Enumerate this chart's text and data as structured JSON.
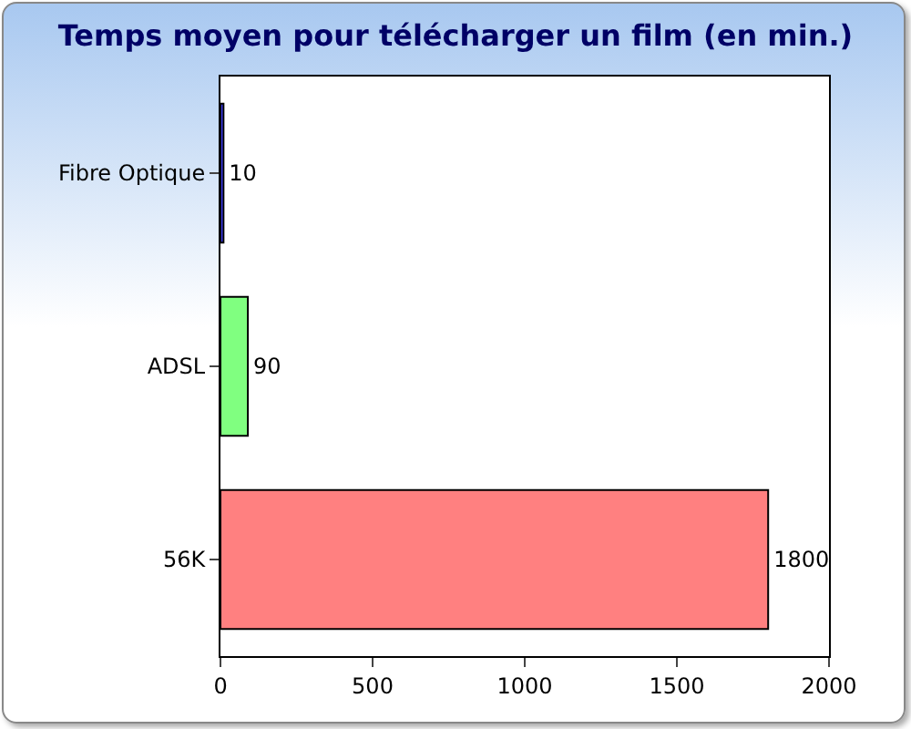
{
  "chart_data": {
    "type": "bar",
    "title": "Temps moyen pour télécharger un film (en min.)",
    "orientation": "horizontal",
    "categories": [
      "Fibre Optique",
      "ADSL",
      "56K"
    ],
    "values": [
      10,
      90,
      1800
    ],
    "colors": [
      "#4040ff",
      "#80ff80",
      "#ff8080"
    ],
    "xlim": [
      0,
      2000
    ],
    "xticks": [
      0,
      500,
      1000,
      1500,
      2000
    ],
    "data_labels": true,
    "grid": false,
    "legend": false
  }
}
